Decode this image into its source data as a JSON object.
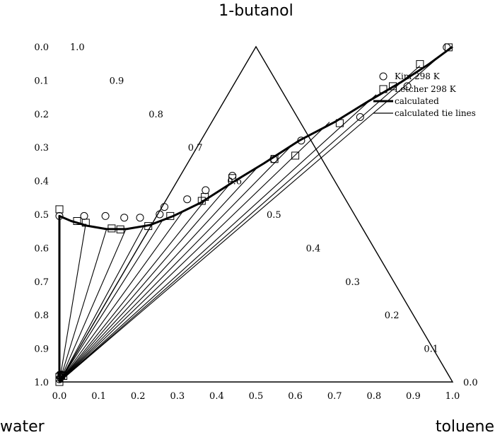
{
  "chart_data": {
    "type": "scatter",
    "subtype": "ternary",
    "axes": {
      "top": "1-butanol",
      "left": "water",
      "right": "toluene"
    },
    "tick_values": [
      "0.0",
      "0.1",
      "0.2",
      "0.3",
      "0.4",
      "0.5",
      "0.6",
      "0.7",
      "0.8",
      "0.9",
      "1.0"
    ],
    "legend": {
      "placement": "top-right",
      "entries": [
        "Kim 298 K",
        "Letcher 298 K",
        "calculated",
        "calculated tie lines"
      ]
    },
    "series": [
      {
        "name": "Kim 298 K",
        "marker": "circle",
        "points": [
          {
            "toluene": 0.0,
            "butanol": 0.008
          },
          {
            "toluene": 0.0,
            "butanol": 0.02
          },
          {
            "toluene": 0.003,
            "butanol": 0.013
          },
          {
            "toluene": 0.005,
            "butanol": 0.022
          },
          {
            "toluene": 0.0,
            "butanol": 0.495
          },
          {
            "toluene": 0.063,
            "butanol": 0.495
          },
          {
            "toluene": 0.117,
            "butanol": 0.495
          },
          {
            "toluene": 0.165,
            "butanol": 0.49
          },
          {
            "toluene": 0.205,
            "butanol": 0.49
          },
          {
            "toluene": 0.255,
            "butanol": 0.5
          },
          {
            "toluene": 0.267,
            "butanol": 0.522
          },
          {
            "toluene": 0.325,
            "butanol": 0.545
          },
          {
            "toluene": 0.372,
            "butanol": 0.572
          },
          {
            "toluene": 0.44,
            "butanol": 0.615
          },
          {
            "toluene": 0.545,
            "butanol": 0.665
          },
          {
            "toluene": 0.615,
            "butanol": 0.72
          },
          {
            "toluene": 0.765,
            "butanol": 0.79
          },
          {
            "toluene": 0.885,
            "butanol": 0.882
          },
          {
            "toluene": 0.985,
            "butanol": 0.998
          }
        ]
      },
      {
        "name": "Letcher 298 K",
        "marker": "square",
        "points": [
          {
            "toluene": 0.0,
            "butanol": 0.0
          },
          {
            "toluene": 0.0,
            "butanol": 0.015
          },
          {
            "toluene": 0.005,
            "butanol": 0.02
          },
          {
            "toluene": 0.01,
            "butanol": 0.018
          },
          {
            "toluene": 0.0,
            "butanol": 0.515
          },
          {
            "toluene": 0.045,
            "butanol": 0.48
          },
          {
            "toluene": 0.067,
            "butanol": 0.475
          },
          {
            "toluene": 0.133,
            "butanol": 0.458
          },
          {
            "toluene": 0.155,
            "butanol": 0.455
          },
          {
            "toluene": 0.226,
            "butanol": 0.465
          },
          {
            "toluene": 0.282,
            "butanol": 0.495
          },
          {
            "toluene": 0.362,
            "butanol": 0.54
          },
          {
            "toluene": 0.37,
            "butanol": 0.552
          },
          {
            "toluene": 0.44,
            "butanol": 0.608
          },
          {
            "toluene": 0.547,
            "butanol": 0.665
          },
          {
            "toluene": 0.6,
            "butanol": 0.675
          },
          {
            "toluene": 0.713,
            "butanol": 0.772
          },
          {
            "toluene": 0.848,
            "butanol": 0.882
          },
          {
            "toluene": 0.917,
            "butanol": 0.948
          },
          {
            "toluene": 0.99,
            "butanol": 0.998
          }
        ]
      },
      {
        "name": "calculated",
        "line": "thick",
        "points": [
          {
            "toluene": 0.0,
            "butanol": 0.0
          },
          {
            "toluene": 0.0,
            "butanol": 0.495
          },
          {
            "toluene": 0.03,
            "butanol": 0.48
          },
          {
            "toluene": 0.07,
            "butanol": 0.466
          },
          {
            "toluene": 0.12,
            "butanol": 0.456
          },
          {
            "toluene": 0.17,
            "butanol": 0.456
          },
          {
            "toluene": 0.23,
            "butanol": 0.468
          },
          {
            "toluene": 0.29,
            "butanol": 0.495
          },
          {
            "toluene": 0.36,
            "butanol": 0.535
          },
          {
            "toluene": 0.44,
            "butanol": 0.595
          },
          {
            "toluene": 0.52,
            "butanol": 0.652
          },
          {
            "toluene": 0.61,
            "butanol": 0.72
          },
          {
            "toluene": 0.7,
            "butanol": 0.775
          },
          {
            "toluene": 0.79,
            "butanol": 0.84
          },
          {
            "toluene": 0.87,
            "butanol": 0.895
          },
          {
            "toluene": 0.94,
            "butanol": 0.948
          },
          {
            "toluene": 1.0,
            "butanol": 1.0
          }
        ]
      },
      {
        "name": "calculated tie lines",
        "line": "thin",
        "lines": [
          {
            "toluene": 0.067,
            "butanol": 0.472
          },
          {
            "toluene": 0.12,
            "butanol": 0.456
          },
          {
            "toluene": 0.168,
            "butanol": 0.453
          },
          {
            "toluene": 0.214,
            "butanol": 0.463
          },
          {
            "toluene": 0.262,
            "butanol": 0.482
          },
          {
            "toluene": 0.316,
            "butanol": 0.512
          },
          {
            "toluene": 0.374,
            "butanol": 0.547
          },
          {
            "toluene": 0.431,
            "butanol": 0.587
          },
          {
            "toluene": 0.502,
            "butanol": 0.638
          },
          {
            "toluene": 0.588,
            "butanol": 0.702
          },
          {
            "toluene": 0.687,
            "butanol": 0.775
          },
          {
            "toluene": 0.806,
            "butanol": 0.857
          },
          {
            "toluene": 0.917,
            "butanol": 0.943
          },
          {
            "toluene": 0.993,
            "butanol": 0.997
          }
        ]
      }
    ]
  }
}
